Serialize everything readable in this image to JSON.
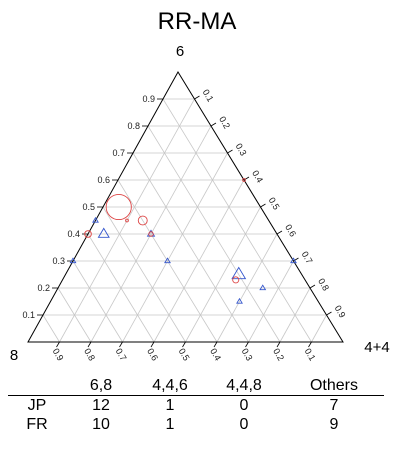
{
  "chart_data": {
    "type": "ternary",
    "title": "RR-MA",
    "vertices": {
      "top": "6",
      "left": "8",
      "right": "4+4"
    },
    "ticks": {
      "left_edge": [
        "0.1",
        "0.2",
        "0.3",
        "0.4",
        "0.5",
        "0.6",
        "0.7",
        "0.8",
        "0.9"
      ],
      "right_edge": [
        "0.1",
        "0.2",
        "0.3",
        "0.4",
        "0.5",
        "0.6",
        "0.7",
        "0.8",
        "0.9"
      ],
      "bottom_edge": [
        "0.9",
        "0.8",
        "0.7",
        "0.6",
        "0.5",
        "0.4",
        "0.3",
        "0.2",
        "0.1"
      ]
    },
    "grid": true,
    "series": [
      {
        "marker": "triangle",
        "color": "#3355cc",
        "points": [
          {
            "top": 0.45,
            "right": 0.0,
            "size": 1
          },
          {
            "top": 0.4,
            "right": 0.05,
            "size": 2
          },
          {
            "top": 0.3,
            "right": 0.0,
            "size": 1
          },
          {
            "top": 0.3,
            "right": 0.3,
            "size": 1
          },
          {
            "top": 0.4,
            "right": 0.2,
            "size": 1.3
          },
          {
            "top": 0.25,
            "right": 0.55,
            "size": 2.5
          },
          {
            "top": 0.15,
            "right": 0.6,
            "size": 1
          },
          {
            "top": 0.2,
            "right": 0.65,
            "size": 1
          },
          {
            "top": 0.3,
            "right": 0.7,
            "size": 1
          }
        ]
      },
      {
        "marker": "circle",
        "color": "#dd4444",
        "points": [
          {
            "top": 0.5,
            "right": 0.05,
            "size": 4.5
          },
          {
            "top": 0.45,
            "right": 0.15,
            "size": 1.6
          },
          {
            "top": 0.4,
            "right": 0.0,
            "size": 1.2
          },
          {
            "top": 0.4,
            "right": 0.2,
            "size": 0.8
          },
          {
            "top": 0.45,
            "right": 0.1,
            "size": 0.5
          },
          {
            "top": 0.6,
            "right": 0.4,
            "size": 0.5
          },
          {
            "top": 0.23,
            "right": 0.55,
            "size": 1.1
          }
        ]
      }
    ]
  },
  "table": {
    "headers": [
      "6,8",
      "4,4,6",
      "4,4,8",
      "Others"
    ],
    "rows": [
      {
        "label": "JP",
        "values": [
          "12",
          "1",
          "0",
          "7"
        ]
      },
      {
        "label": "FR",
        "values": [
          "10",
          "1",
          "0",
          "9"
        ]
      }
    ]
  }
}
